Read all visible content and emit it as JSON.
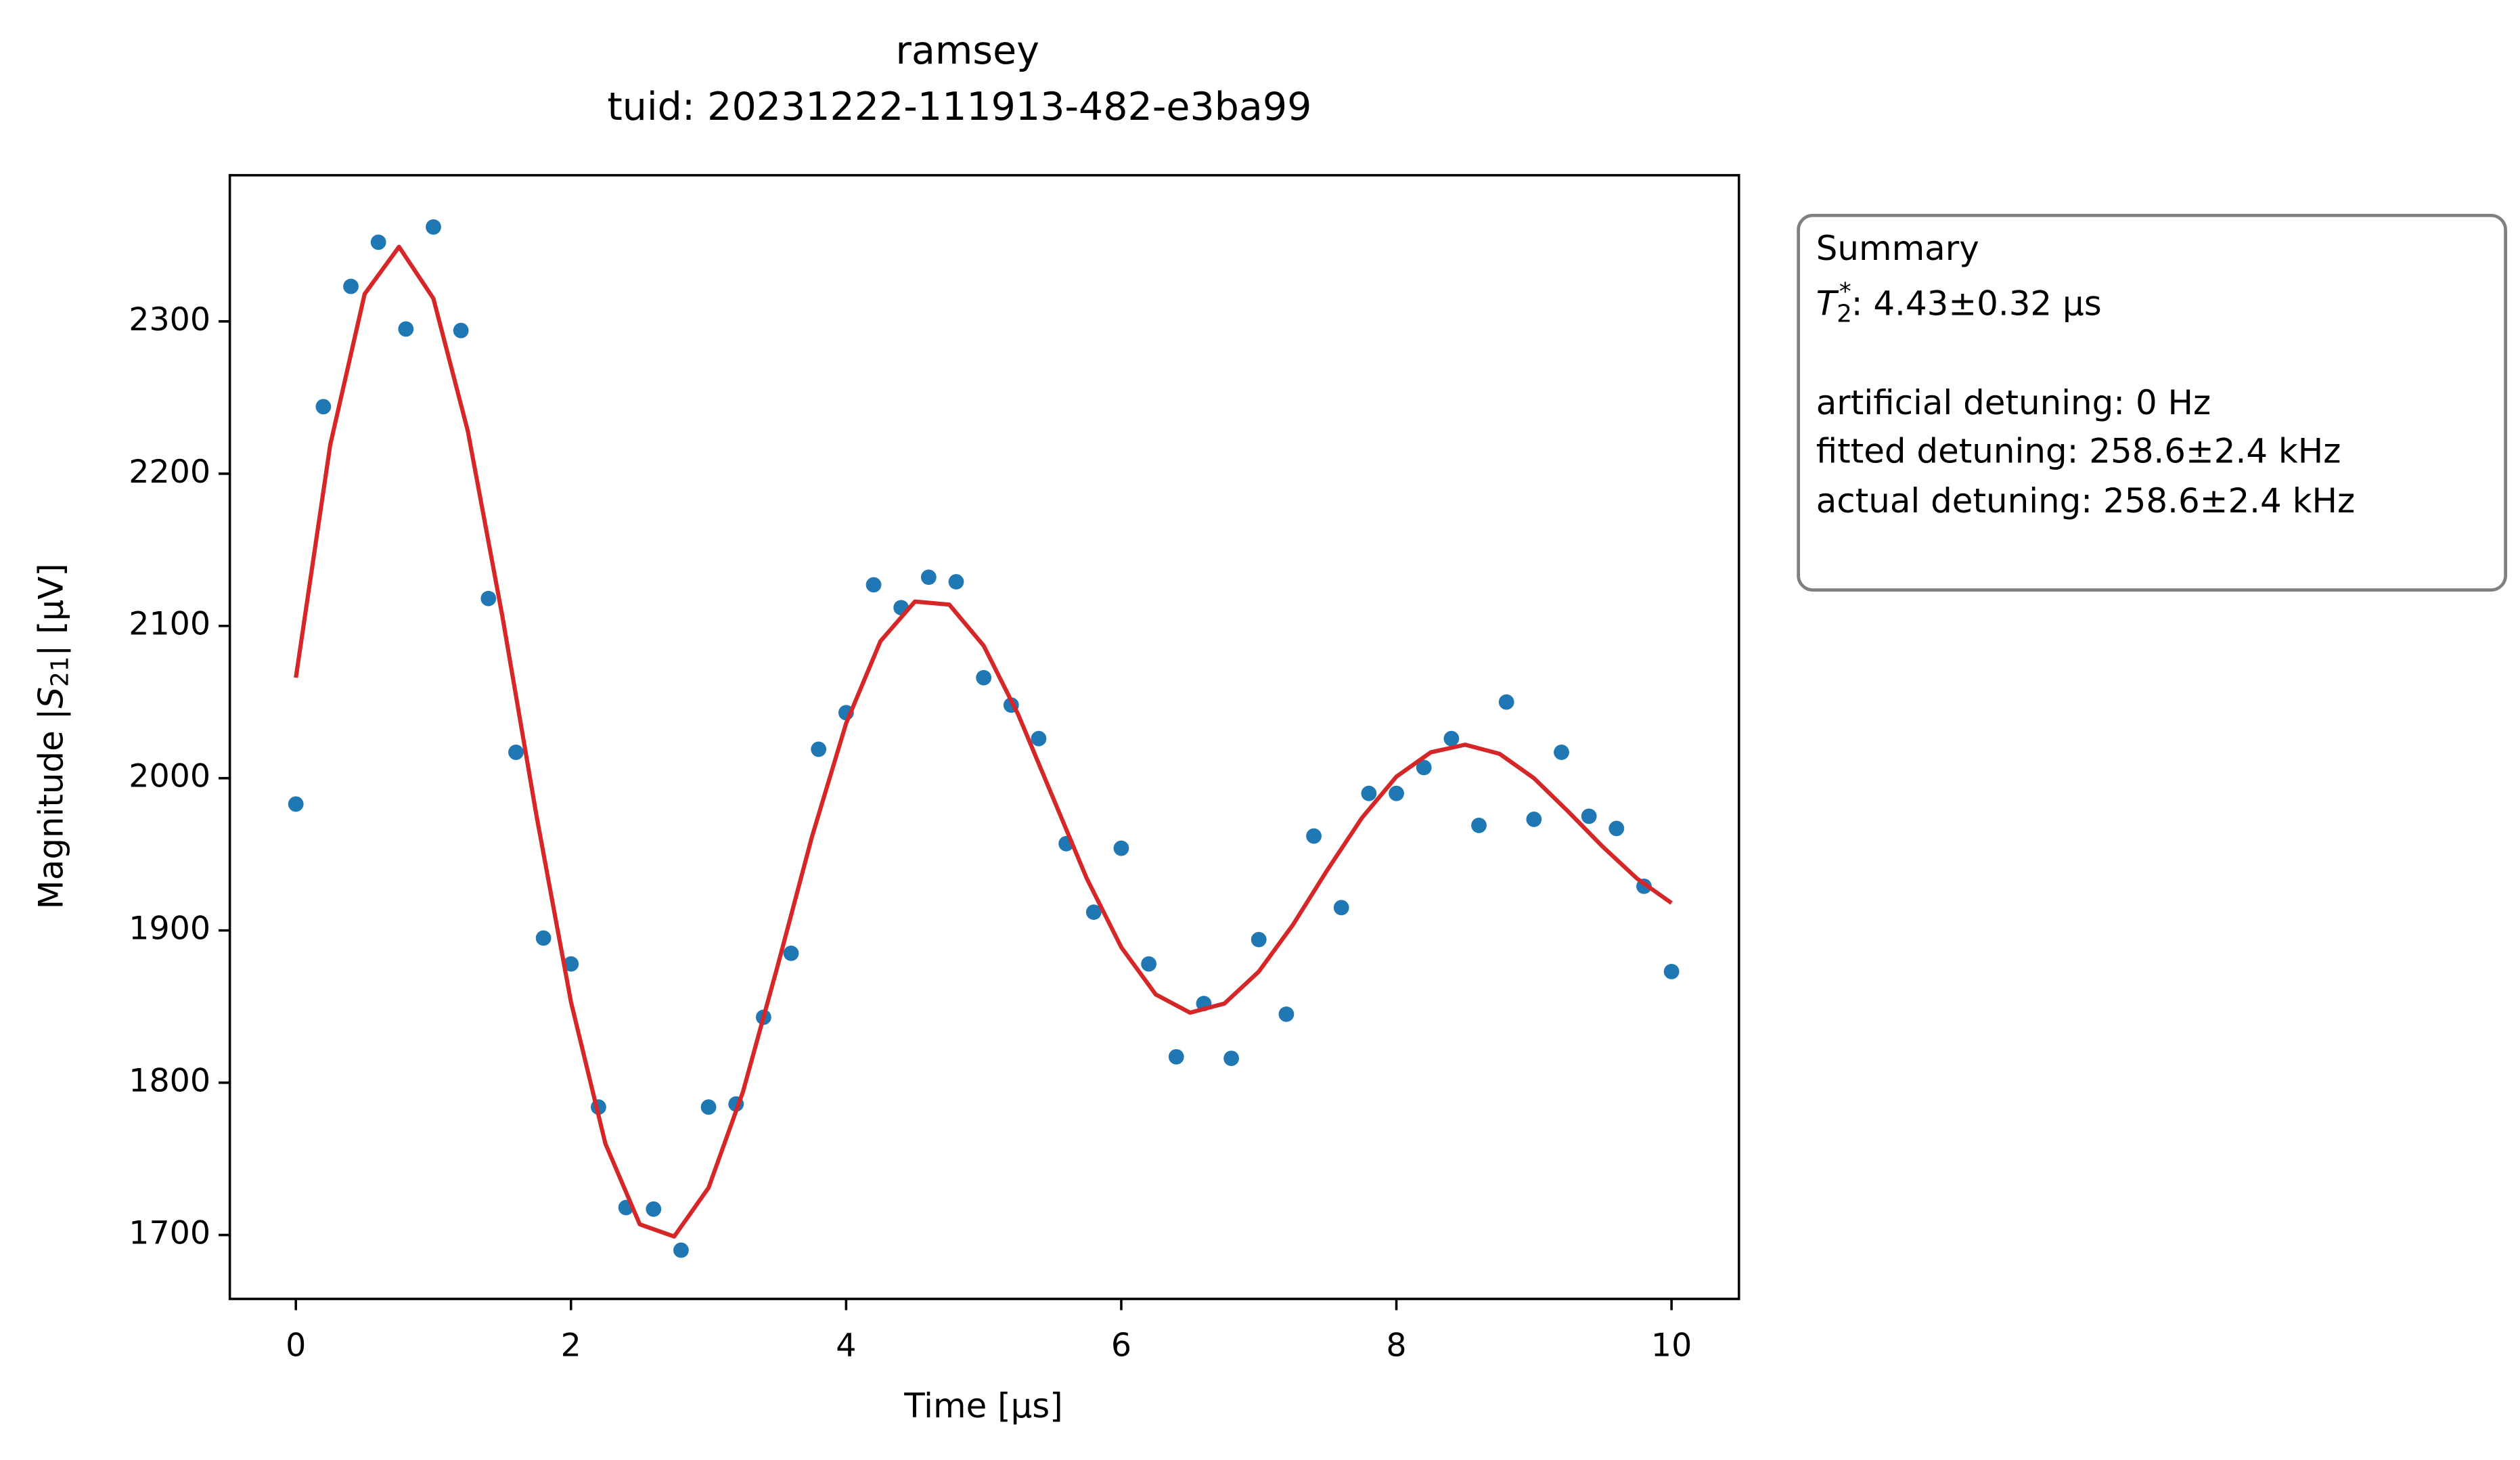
{
  "chart_data": {
    "type": "scatter",
    "title": "ramsey",
    "subtitle": "tuid: 20231222-111913-482-e3ba99",
    "xlabel": "Time [µs]",
    "ylabel": {
      "before": "Magnitude |",
      "symbol": "S",
      "subscript": "21",
      "after": "| [µV]"
    },
    "xlim": [
      -0.48,
      10.49
    ],
    "ylim": [
      1658,
      2396
    ],
    "xticks": [
      0,
      2,
      4,
      6,
      8,
      10
    ],
    "yticks": [
      1700,
      1800,
      1900,
      2000,
      2100,
      2200,
      2300
    ],
    "grid": false,
    "series": [
      {
        "type": "scatter",
        "color": "#1f77b4",
        "x": [
          0,
          0.2,
          0.4,
          0.6,
          0.8,
          1.0,
          1.2,
          1.4,
          1.6,
          1.8,
          2.0,
          2.2,
          2.4,
          2.6,
          2.8,
          3.0,
          3.2,
          3.4,
          3.6,
          3.8,
          4.0,
          4.2,
          4.4,
          4.6,
          4.8,
          5.0,
          5.2,
          5.4,
          5.6,
          5.8,
          6.0,
          6.2,
          6.4,
          6.6,
          6.8,
          7.0,
          7.2,
          7.4,
          7.6,
          7.8,
          8.0,
          8.2,
          8.4,
          8.6,
          8.8,
          9.0,
          9.2,
          9.4,
          9.6,
          9.8,
          10.0
        ],
        "values": [
          1983,
          2244,
          2323,
          2352,
          2295,
          2362,
          2294,
          2118,
          2017,
          1895,
          1878,
          1784,
          1718,
          1717,
          1690,
          1784,
          1786,
          1843,
          1885,
          2019,
          2043,
          2127,
          2112,
          2132,
          2129,
          2066,
          2048,
          2026,
          1957,
          1912,
          1954,
          1878,
          1817,
          1852,
          1816,
          1894,
          1845,
          1962,
          1915,
          1990,
          1990,
          2007,
          2026,
          1969,
          2050,
          1973,
          2017,
          1975,
          1967,
          1929,
          1873
        ]
      },
      {
        "type": "line",
        "color": "#d62728",
        "x": [
          0,
          0.25,
          0.5,
          0.75,
          1.0,
          1.25,
          1.5,
          1.75,
          2.0,
          2.25,
          2.5,
          2.75,
          3.0,
          3.25,
          3.5,
          3.75,
          4.0,
          4.25,
          4.5,
          4.75,
          5.0,
          5.25,
          5.5,
          5.75,
          6.0,
          6.25,
          6.5,
          6.75,
          7.0,
          7.25,
          7.5,
          7.75,
          8.0,
          8.25,
          8.5,
          8.75,
          9.0,
          9.25,
          9.5,
          9.75,
          10.0
        ],
        "values": [
          2066,
          2219,
          2318,
          2349,
          2315,
          2228,
          2107,
          1975,
          1853,
          1760,
          1707,
          1699,
          1731,
          1794,
          1876,
          1961,
          2036,
          2090,
          2116,
          2114,
          2087,
          2042,
          1988,
          1934,
          1889,
          1858,
          1846,
          1852,
          1873,
          1904,
          1940,
          1974,
          2001,
          2017,
          2022,
          2016,
          2000,
          1978,
          1955,
          1934,
          1918
        ]
      }
    ],
    "summary": {
      "heading": "Summary",
      "t2": {
        "symbol": "T",
        "subscript": "2",
        "superscript": "*",
        "text": ": 4.43±0.32 µs"
      },
      "lines": [
        "artificial detuning: 0 Hz",
        "fitted detuning: 258.6±2.4 kHz",
        "actual detuning: 258.6±2.4 kHz"
      ]
    }
  }
}
